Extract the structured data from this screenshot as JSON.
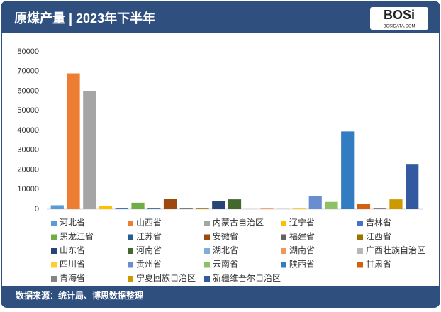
{
  "chart_data": {
    "type": "bar",
    "title": "原煤产量 | 2023年下半年",
    "logo": "BOSi",
    "logo_sub": "BOSIDATA.COM",
    "source": "数据来源：统计局、博思数据整理",
    "categories": [
      null
    ],
    "ylim": [
      0,
      80000
    ],
    "yticks": [
      0,
      10000,
      20000,
      30000,
      40000,
      50000,
      60000,
      70000,
      80000
    ],
    "grid": false,
    "legend": "bottom",
    "series": [
      {
        "name": "河北省",
        "color": "#5b9bd5",
        "values": [
          2000
        ]
      },
      {
        "name": "山西省",
        "color": "#ed7d31",
        "values": [
          69000
        ]
      },
      {
        "name": "内蒙古自治区",
        "color": "#a5a5a5",
        "values": [
          60000
        ]
      },
      {
        "name": "辽宁省",
        "color": "#ffc000",
        "values": [
          1500
        ]
      },
      {
        "name": "吉林省",
        "color": "#4472c4",
        "values": [
          400
        ]
      },
      {
        "name": "黑龙江省",
        "color": "#70ad47",
        "values": [
          3300
        ]
      },
      {
        "name": "江苏省",
        "color": "#255e91",
        "values": [
          300
        ]
      },
      {
        "name": "安徽省",
        "color": "#9e480e",
        "values": [
          5300
        ]
      },
      {
        "name": "福建省",
        "color": "#636363",
        "values": [
          300
        ]
      },
      {
        "name": "江西省",
        "color": "#997300",
        "values": [
          300
        ]
      },
      {
        "name": "山东省",
        "color": "#264478",
        "values": [
          4300
        ]
      },
      {
        "name": "河南省",
        "color": "#43682b",
        "values": [
          5000
        ]
      },
      {
        "name": "湖北省",
        "color": "#7cafdd",
        "values": [
          50
        ]
      },
      {
        "name": "湖南省",
        "color": "#f1975a",
        "values": [
          300
        ]
      },
      {
        "name": "广西壮族自治区",
        "color": "#b7b7b7",
        "values": [
          150
        ]
      },
      {
        "name": "四川省",
        "color": "#ffcd33",
        "values": [
          700
        ]
      },
      {
        "name": "贵州省",
        "color": "#698ed0",
        "values": [
          6800
        ]
      },
      {
        "name": "云南省",
        "color": "#8cc168",
        "values": [
          3700
        ]
      },
      {
        "name": "陕西省",
        "color": "#327dc2",
        "values": [
          39500
        ]
      },
      {
        "name": "甘肃省",
        "color": "#d26012",
        "values": [
          2800
        ]
      },
      {
        "name": "青海省",
        "color": "#848484",
        "values": [
          500
        ]
      },
      {
        "name": "宁夏回族自治区",
        "color": "#cc9a00",
        "values": [
          5000
        ]
      },
      {
        "name": "新疆维吾尔自治区",
        "color": "#335aa1",
        "values": [
          23000
        ]
      }
    ]
  }
}
